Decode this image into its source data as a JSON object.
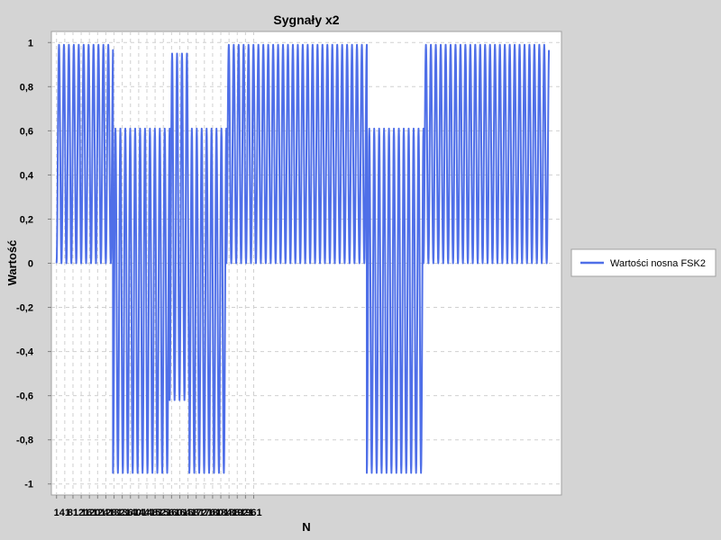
{
  "chart_data": {
    "type": "line",
    "title": "Sygnały x2",
    "xlabel": "N",
    "ylabel": "Wartość",
    "xlim": [
      -20,
      2050
    ],
    "ylim": [
      -1.05,
      1.05
    ],
    "grid": true,
    "legend_position": "right",
    "x_ticks": [
      1,
      41,
      81,
      121,
      161,
      201,
      241,
      281,
      321,
      361,
      401,
      441,
      481,
      521,
      561,
      601,
      641,
      681,
      721,
      761,
      801,
      841,
      881,
      921,
      961
    ],
    "x_tick_labels": [
      "1",
      "41",
      "81",
      "121",
      "161",
      "201",
      "241",
      "281",
      "321",
      "361",
      "401",
      "441",
      "481",
      "521",
      "561",
      "601",
      "641",
      "681",
      "721",
      "761",
      "801",
      "841",
      "881",
      "921",
      "961"
    ],
    "y_ticks": [
      -1,
      -0.8,
      -0.6,
      -0.4,
      -0.2,
      0,
      0.2,
      0.4,
      0.6,
      0.8,
      1
    ],
    "y_tick_labels": [
      "-1",
      "-0,8",
      "-0,6",
      "-0,4",
      "-0,2",
      "0",
      "0,2",
      "0,4",
      "0,6",
      "0,8",
      "1"
    ],
    "series": [
      {
        "name": "Wartości nosna FSK2",
        "color": "#4f6fe8",
        "x_range": [
          1,
          1999
        ],
        "segments": [
          {
            "x_start": 1,
            "x_end": 230,
            "min": 0.0,
            "max": 0.99,
            "period": 20
          },
          {
            "x_start": 230,
            "x_end": 460,
            "min": -0.95,
            "max": 0.61,
            "period": 20
          },
          {
            "x_start": 460,
            "x_end": 540,
            "min": -0.62,
            "max": 0.95,
            "period": 20
          },
          {
            "x_start": 540,
            "x_end": 690,
            "min": -0.95,
            "max": 0.61,
            "period": 20
          },
          {
            "x_start": 690,
            "x_end": 1260,
            "min": 0.0,
            "max": 0.99,
            "period": 20
          },
          {
            "x_start": 1260,
            "x_end": 1490,
            "min": -0.95,
            "max": 0.61,
            "period": 20
          },
          {
            "x_start": 1490,
            "x_end": 1999,
            "min": 0.0,
            "max": 0.99,
            "period": 20
          }
        ]
      }
    ]
  }
}
